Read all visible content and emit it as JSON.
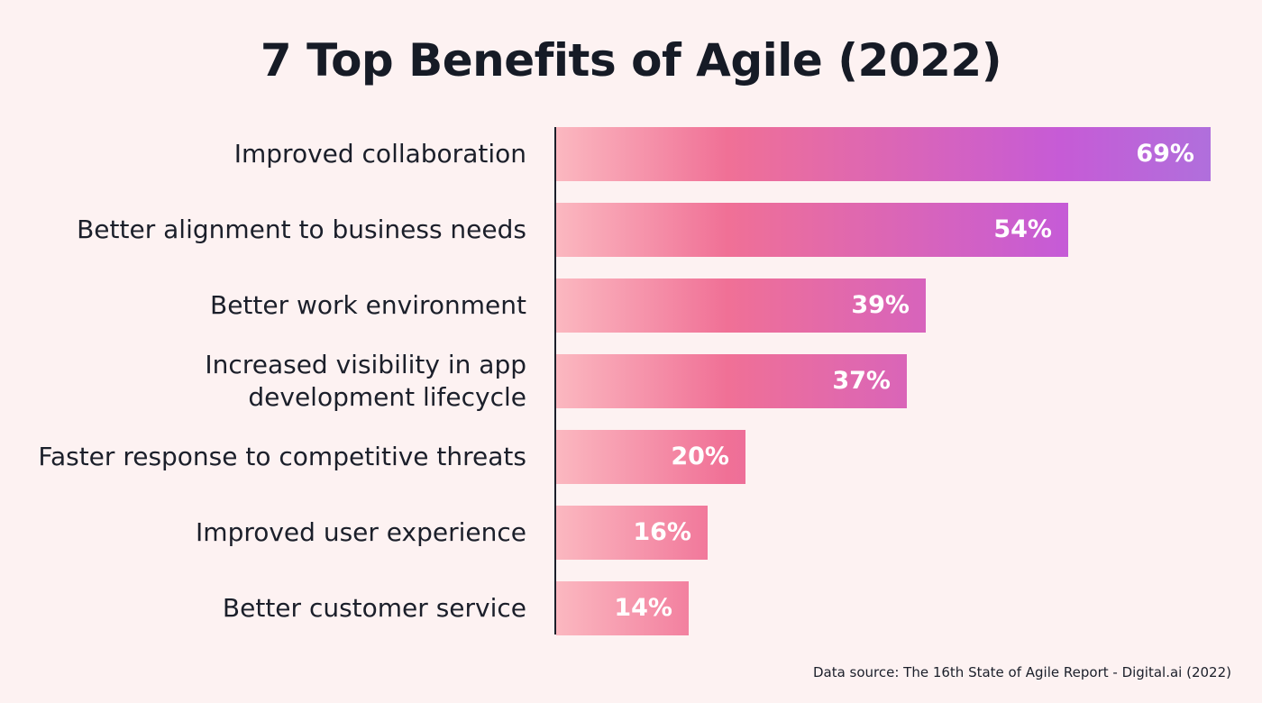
{
  "chart_data": {
    "type": "bar",
    "orientation": "horizontal",
    "title": "7 Top Benefits of Agile (2022)",
    "categories": [
      "Improved collaboration",
      "Better alignment to business needs",
      "Better work environment",
      "Increased visibility in app\ndevelopment lifecycle",
      "Faster response to competitive threats",
      "Improved user experience",
      "Better customer service"
    ],
    "values": [
      69,
      54,
      39,
      37,
      20,
      16,
      14
    ],
    "value_labels": [
      "69%",
      "54%",
      "39%",
      "37%",
      "20%",
      "16%",
      "14%"
    ],
    "xlim": [
      0,
      69
    ],
    "xlabel": "",
    "ylabel": "",
    "grid": false,
    "colors": {
      "gradient_start": "#fbb8c0",
      "gradient_mid": "#f07096",
      "gradient_purple": "#c65bd6",
      "gradient_end": "#b06fdc",
      "axis": "#1b1f2a"
    }
  },
  "source": "Data source: The 16th State of Agile Report - Digital.ai (2022)"
}
